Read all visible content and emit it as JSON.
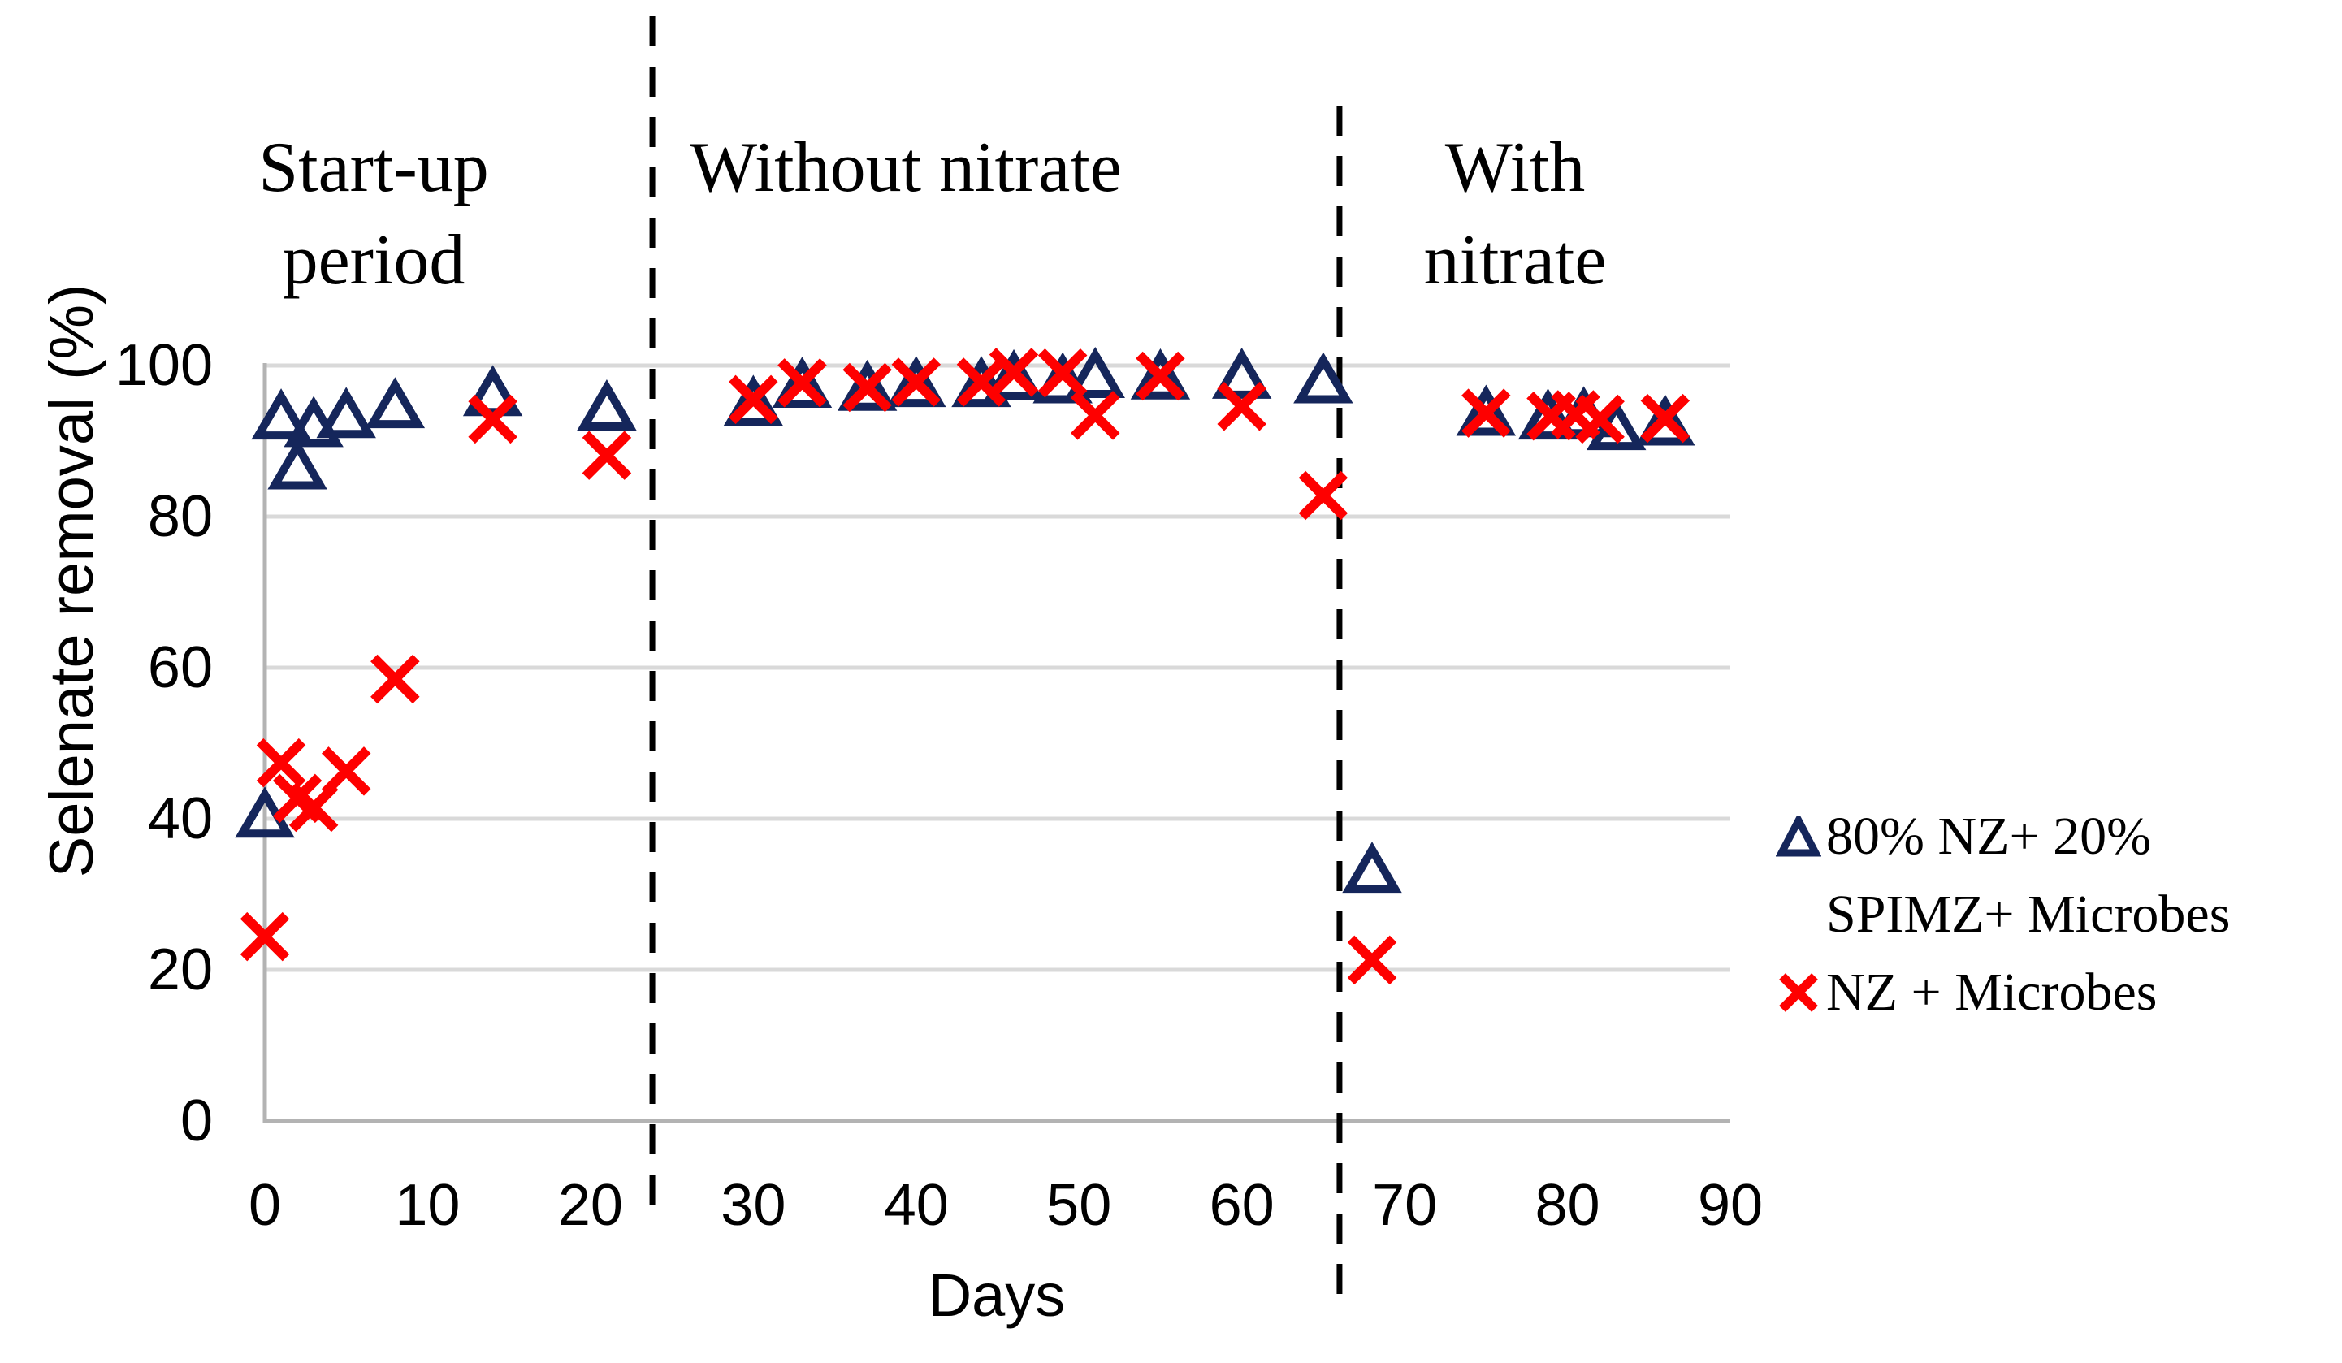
{
  "chart_data": {
    "type": "scatter",
    "title": "",
    "xlabel": "Days",
    "ylabel": "Selenate removal (%)",
    "xlim": [
      0,
      90
    ],
    "ylim": [
      0,
      100
    ],
    "x_ticks": [
      0,
      10,
      20,
      30,
      40,
      50,
      60,
      70,
      80,
      90
    ],
    "y_ticks": [
      0,
      20,
      40,
      60,
      80,
      100
    ],
    "grid": "horizontal-only",
    "legend_position": "right",
    "colors": {
      "series1": "#15265b",
      "series2": "#fe0000",
      "gridline": "#d9d9d9",
      "axis": "#b3b3b3",
      "divider": "#000000",
      "text": "#000000"
    },
    "regions": [
      {
        "label_lines": [
          "Start-up",
          "period"
        ]
      },
      {
        "label_lines": [
          "Without nitrate",
          ""
        ]
      },
      {
        "label_lines": [
          "With",
          "nitrate"
        ]
      }
    ],
    "dividers_at_days": [
      23.8,
      66
    ],
    "series": [
      {
        "name": "80% NZ+ 20% SPIMZ+ Microbes",
        "marker": "triangle",
        "color": "#15265b",
        "points": [
          [
            0,
            40.3
          ],
          [
            1,
            93.0
          ],
          [
            2,
            86.4
          ],
          [
            3,
            92.0
          ],
          [
            5,
            93.2
          ],
          [
            8,
            94.5
          ],
          [
            14,
            96.1
          ],
          [
            21,
            94.2
          ],
          [
            30,
            94.8
          ],
          [
            33,
            97.2
          ],
          [
            37,
            96.8
          ],
          [
            40,
            97.3
          ],
          [
            44,
            97.3
          ],
          [
            46,
            98.2
          ],
          [
            49,
            97.8
          ],
          [
            51,
            98.5
          ],
          [
            55,
            98.3
          ],
          [
            60,
            98.4
          ],
          [
            65,
            97.8
          ],
          [
            68,
            33.0
          ],
          [
            75,
            93.5
          ],
          [
            78.8,
            93.0
          ],
          [
            81,
            93.3
          ],
          [
            83,
            91.6
          ],
          [
            86,
            92.2
          ]
        ]
      },
      {
        "name": "NZ + Microbes",
        "marker": "x",
        "color": "#fe0000",
        "points": [
          [
            0,
            24.4
          ],
          [
            1,
            47.4
          ],
          [
            2,
            42.7
          ],
          [
            3,
            41.5
          ],
          [
            5,
            46.3
          ],
          [
            8,
            58.5
          ],
          [
            14,
            92.9
          ],
          [
            21,
            88.1
          ],
          [
            30,
            95.5
          ],
          [
            33,
            97.7
          ],
          [
            37,
            97.1
          ],
          [
            40,
            97.8
          ],
          [
            44,
            97.8
          ],
          [
            46,
            99.1
          ],
          [
            49,
            99.0
          ],
          [
            51,
            93.4
          ],
          [
            55,
            98.6
          ],
          [
            60,
            94.6
          ],
          [
            65,
            82.8
          ],
          [
            68,
            21.3
          ],
          [
            75,
            93.7
          ],
          [
            79,
            93.3
          ],
          [
            80.5,
            93.5
          ],
          [
            82,
            92.9
          ],
          [
            86,
            93.0
          ]
        ]
      }
    ]
  },
  "legend": {
    "entries": [
      {
        "marker": "triangle",
        "lines": [
          "80% NZ+ 20%",
          "SPIMZ+ Microbes"
        ]
      },
      {
        "marker": "x",
        "lines": [
          "NZ + Microbes"
        ]
      }
    ]
  }
}
